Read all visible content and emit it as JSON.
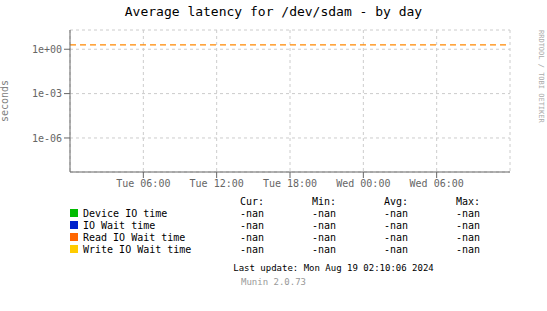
{
  "chart_data": {
    "type": "line",
    "title": "Average latency for /dev/sdam - by day",
    "y_label": "seconds",
    "log": "y",
    "grid": true,
    "legend": "bottom",
    "xlim": [
      0,
      1
    ],
    "xticks": [
      {
        "value": 0.16667,
        "label": "Tue 06:00"
      },
      {
        "value": 0.33333,
        "label": "Tue 12:00"
      },
      {
        "value": 0.5,
        "label": "Tue 18:00"
      },
      {
        "value": 0.66667,
        "label": "Wed 00:00"
      },
      {
        "value": 0.83333,
        "label": "Wed 06:00"
      }
    ],
    "ylim": [
      5e-09,
      20
    ],
    "yticks": [
      {
        "value": 1e-06,
        "label": "1e-06"
      },
      {
        "value": 0.001,
        "label": "1e-03"
      },
      {
        "value": 1,
        "label": "1e+00"
      }
    ],
    "reference_lines": [
      {
        "y": 2.0,
        "color": "#ff8800",
        "line_style": "dashed"
      }
    ],
    "legend_columns": [
      "Cur:",
      "Min:",
      "Avg:",
      "Max:"
    ],
    "series": [
      {
        "name": "Device IO time",
        "color": "#00bb00",
        "legend_values": [
          "-nan",
          "-nan",
          "-nan",
          "-nan"
        ]
      },
      {
        "name": "IO Wait time",
        "color": "#0022cc",
        "legend_values": [
          "-nan",
          "-nan",
          "-nan",
          "-nan"
        ]
      },
      {
        "name": "Read IO Wait time",
        "color": "#ff6600",
        "legend_values": [
          "-nan",
          "-nan",
          "-nan",
          "-nan"
        ]
      },
      {
        "name": "Write IO Wait time",
        "color": "#ffcc00",
        "legend_values": [
          "-nan",
          "-nan",
          "-nan",
          "-nan"
        ]
      }
    ],
    "annotations": [
      "Last update: Mon Aug 19 02:10:06 2024",
      "Munin 2.0.73",
      "RRDTOOL / TOBI OETIKER"
    ]
  }
}
